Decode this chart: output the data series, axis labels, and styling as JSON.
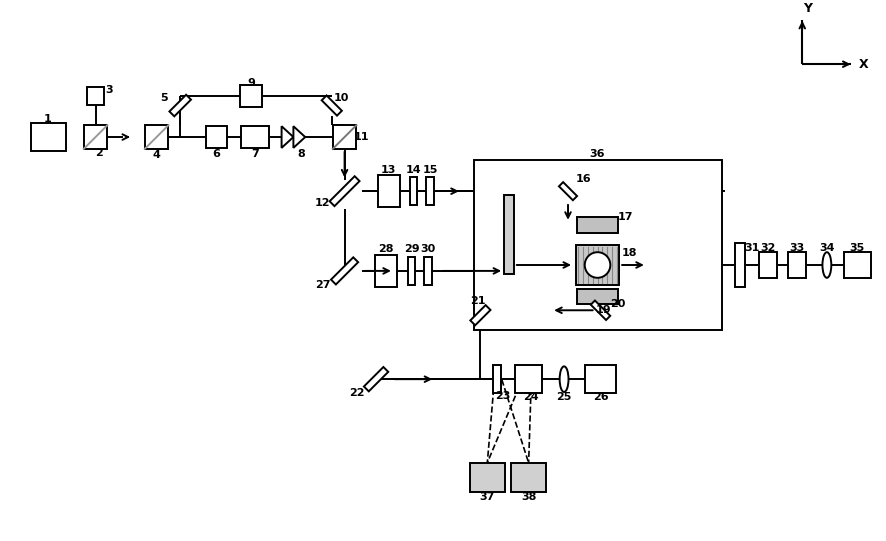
{
  "fig_width": 8.87,
  "fig_height": 5.41,
  "dpi": 100,
  "bg_color": "#ffffff",
  "lw": 1.4
}
